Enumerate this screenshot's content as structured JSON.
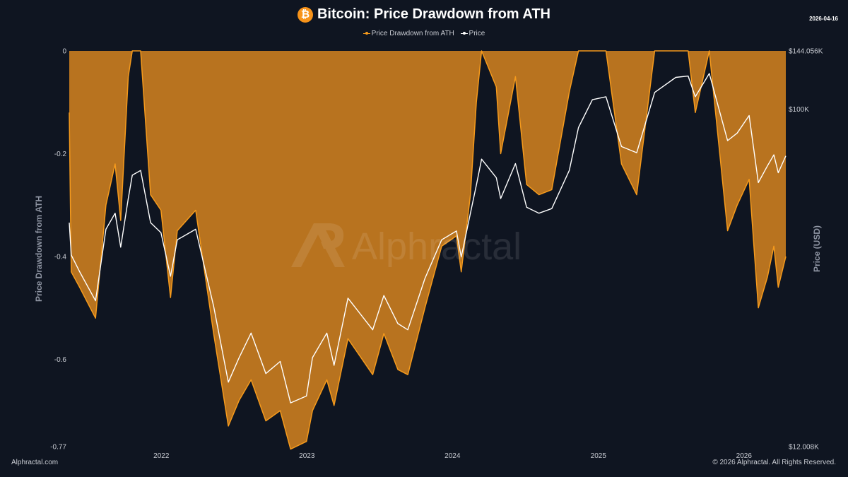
{
  "header": {
    "title": "Bitcoin: Price Drawdown from ATH",
    "date": "2026-04-16",
    "icon": "bitcoin-icon"
  },
  "footer": {
    "left": "Alphractal.com",
    "right": "© 2026 Alphractal. All Rights Reserved."
  },
  "watermark": "Alphractal",
  "colors": {
    "background": "#0f1521",
    "drawdown": "#b8731f",
    "drawdown_edge": "#f59a1c",
    "price": "#ffffff",
    "brand": "#f7931a"
  },
  "chart_data": {
    "type": "area",
    "legend": {
      "position": "top-center",
      "entries": [
        "Price Drawdown from ATH",
        "Price"
      ]
    },
    "x_axis": {
      "tick_labels": [
        "2022",
        "2023",
        "2024",
        "2025",
        "2026"
      ],
      "range": [
        "2021-05-15",
        "2026-04-16"
      ]
    },
    "y_axis_left": {
      "label": "Price Drawdown from ATH",
      "tick_labels": [
        "0",
        "-0.2",
        "-0.4",
        "-0.6",
        "-0.77"
      ],
      "range": [
        -0.77,
        0
      ]
    },
    "y_axis_right": {
      "label": "Price (USD)",
      "tick_labels": [
        "$144.056K",
        "$100K",
        "$12.008K"
      ],
      "range": [
        12008,
        144056
      ],
      "scale": "log"
    },
    "grid": false,
    "series": [
      {
        "name": "Price Drawdown from ATH",
        "axis": "left",
        "points": [
          [
            "2021-05-15",
            -0.12
          ],
          [
            "2021-05-20",
            -0.43
          ],
          [
            "2021-06-10",
            -0.46
          ],
          [
            "2021-07-20",
            -0.52
          ],
          [
            "2021-08-15",
            -0.3
          ],
          [
            "2021-09-07",
            -0.22
          ],
          [
            "2021-09-21",
            -0.33
          ],
          [
            "2021-10-10",
            -0.05
          ],
          [
            "2021-10-20",
            0.0
          ],
          [
            "2021-11-10",
            0.0
          ],
          [
            "2021-12-05",
            -0.28
          ],
          [
            "2021-12-31",
            -0.31
          ],
          [
            "2022-01-24",
            -0.48
          ],
          [
            "2022-02-10",
            -0.35
          ],
          [
            "2022-03-28",
            -0.31
          ],
          [
            "2022-05-12",
            -0.55
          ],
          [
            "2022-06-18",
            -0.73
          ],
          [
            "2022-07-15",
            -0.68
          ],
          [
            "2022-08-14",
            -0.64
          ],
          [
            "2022-09-20",
            -0.72
          ],
          [
            "2022-10-26",
            -0.7
          ],
          [
            "2022-11-21",
            -0.775
          ],
          [
            "2022-12-31",
            -0.76
          ],
          [
            "2023-01-15",
            -0.7
          ],
          [
            "2023-02-20",
            -0.64
          ],
          [
            "2023-03-10",
            -0.69
          ],
          [
            "2023-04-14",
            -0.56
          ],
          [
            "2023-06-15",
            -0.63
          ],
          [
            "2023-07-13",
            -0.55
          ],
          [
            "2023-08-17",
            -0.62
          ],
          [
            "2023-09-11",
            -0.63
          ],
          [
            "2023-10-24",
            -0.5
          ],
          [
            "2023-12-05",
            -0.38
          ],
          [
            "2024-01-11",
            -0.36
          ],
          [
            "2024-01-23",
            -0.43
          ],
          [
            "2024-02-15",
            -0.28
          ],
          [
            "2024-03-01",
            -0.1
          ],
          [
            "2024-03-14",
            0.0
          ],
          [
            "2024-04-20",
            -0.07
          ],
          [
            "2024-05-01",
            -0.2
          ],
          [
            "2024-06-07",
            -0.05
          ],
          [
            "2024-07-05",
            -0.26
          ],
          [
            "2024-08-05",
            -0.28
          ],
          [
            "2024-09-06",
            -0.27
          ],
          [
            "2024-10-20",
            -0.08
          ],
          [
            "2024-11-12",
            0.0
          ],
          [
            "2024-12-17",
            0.0
          ],
          [
            "2025-01-20",
            0.0
          ],
          [
            "2025-02-28",
            -0.22
          ],
          [
            "2025-04-07",
            -0.28
          ],
          [
            "2025-05-22",
            0.0
          ],
          [
            "2025-07-14",
            0.0
          ],
          [
            "2025-08-14",
            0.0
          ],
          [
            "2025-09-01",
            -0.12
          ],
          [
            "2025-10-06",
            0.0
          ],
          [
            "2025-11-21",
            -0.35
          ],
          [
            "2025-12-15",
            -0.3
          ],
          [
            "2026-01-14",
            -0.25
          ],
          [
            "2026-02-06",
            -0.5
          ],
          [
            "2026-03-01",
            -0.44
          ],
          [
            "2026-03-17",
            -0.38
          ],
          [
            "2026-03-28",
            -0.46
          ],
          [
            "2026-04-16",
            -0.4
          ]
        ]
      },
      {
        "name": "Price",
        "axis": "right",
        "points": [
          [
            "2021-05-15",
            49000
          ],
          [
            "2021-05-20",
            40000
          ],
          [
            "2021-06-10",
            36000
          ],
          [
            "2021-07-20",
            30000
          ],
          [
            "2021-08-15",
            47000
          ],
          [
            "2021-09-07",
            52000
          ],
          [
            "2021-09-21",
            42000
          ],
          [
            "2021-10-10",
            57000
          ],
          [
            "2021-10-20",
            66000
          ],
          [
            "2021-11-10",
            68000
          ],
          [
            "2021-12-05",
            49000
          ],
          [
            "2021-12-31",
            46000
          ],
          [
            "2022-01-24",
            35000
          ],
          [
            "2022-02-10",
            44000
          ],
          [
            "2022-03-28",
            47000
          ],
          [
            "2022-05-12",
            29000
          ],
          [
            "2022-06-18",
            18000
          ],
          [
            "2022-07-15",
            21000
          ],
          [
            "2022-08-14",
            24500
          ],
          [
            "2022-09-20",
            19000
          ],
          [
            "2022-10-26",
            20500
          ],
          [
            "2022-11-21",
            15800
          ],
          [
            "2022-12-31",
            16500
          ],
          [
            "2023-01-15",
            21000
          ],
          [
            "2023-02-20",
            24500
          ],
          [
            "2023-03-10",
            20000
          ],
          [
            "2023-04-14",
            30500
          ],
          [
            "2023-06-15",
            25000
          ],
          [
            "2023-07-13",
            31000
          ],
          [
            "2023-08-17",
            26000
          ],
          [
            "2023-09-11",
            25000
          ],
          [
            "2023-10-24",
            34500
          ],
          [
            "2023-12-05",
            44000
          ],
          [
            "2024-01-11",
            46500
          ],
          [
            "2024-01-23",
            39500
          ],
          [
            "2024-02-15",
            52000
          ],
          [
            "2024-03-01",
            62000
          ],
          [
            "2024-03-14",
            73000
          ],
          [
            "2024-04-20",
            65000
          ],
          [
            "2024-05-01",
            57000
          ],
          [
            "2024-06-07",
            71000
          ],
          [
            "2024-07-05",
            54000
          ],
          [
            "2024-08-05",
            52000
          ],
          [
            "2024-09-06",
            53500
          ],
          [
            "2024-10-20",
            68000
          ],
          [
            "2024-11-12",
            89000
          ],
          [
            "2024-12-17",
            106000
          ],
          [
            "2025-01-20",
            108000
          ],
          [
            "2025-02-28",
            79000
          ],
          [
            "2025-04-07",
            76000
          ],
          [
            "2025-05-22",
            111000
          ],
          [
            "2025-07-14",
            122000
          ],
          [
            "2025-08-14",
            123000
          ],
          [
            "2025-09-01",
            108000
          ],
          [
            "2025-10-06",
            125000
          ],
          [
            "2025-11-21",
            82000
          ],
          [
            "2025-12-15",
            86000
          ],
          [
            "2026-01-14",
            96000
          ],
          [
            "2026-02-06",
            63000
          ],
          [
            "2026-03-01",
            70000
          ],
          [
            "2026-03-17",
            75000
          ],
          [
            "2026-03-28",
            67000
          ],
          [
            "2026-04-16",
            74500
          ]
        ]
      }
    ]
  }
}
